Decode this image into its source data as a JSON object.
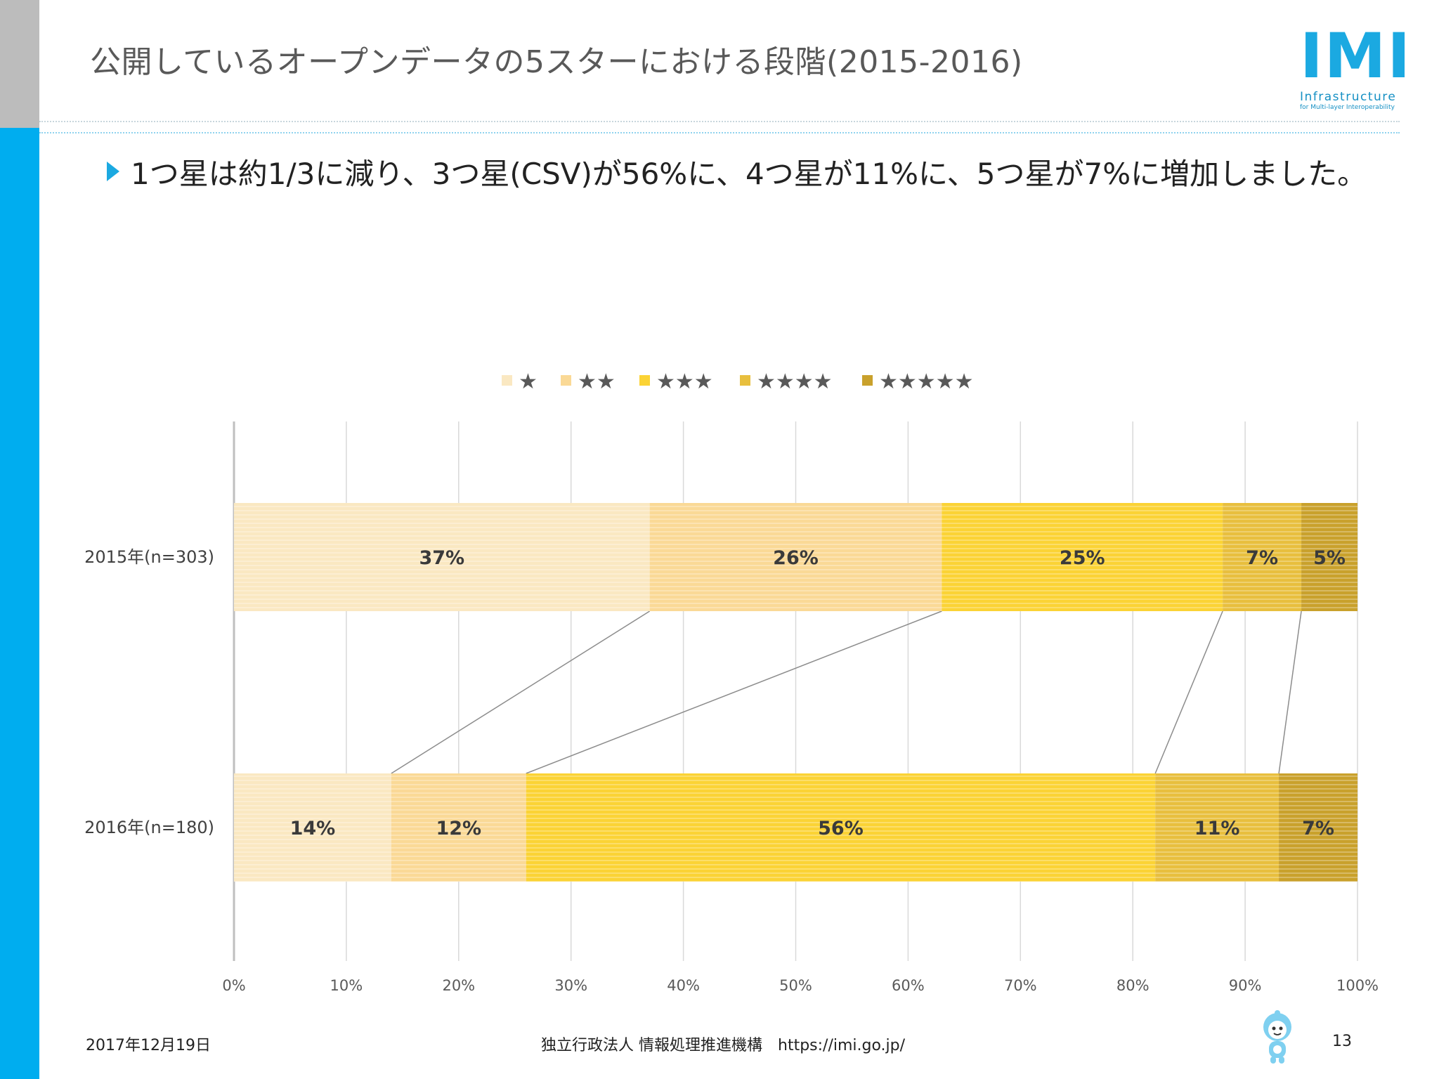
{
  "slide": {
    "title": "公開しているオープンデータの5スターにおける段階(2015-2016)",
    "bullet": "1つ星は約1/3に減り、3つ星(CSV)が56%に、4つ星が11%に、5つ星が7%に増加しました。",
    "logo_mark": "IMI",
    "logo_sub": "Infrastructure",
    "logo_sub2": "for Multi-layer Interoperability",
    "footer_date": "2017年12月19日",
    "footer_org": "独立行政法人 情報処理推進機構　https://imi.go.jp/",
    "page_number": "13"
  },
  "chart_data": {
    "type": "bar",
    "orientation": "horizontal",
    "stacked": true,
    "categories": [
      "2015年(n=303)",
      "2016年(n=180)"
    ],
    "series": [
      {
        "name": "★",
        "values": [
          37,
          14
        ],
        "labels": [
          "37%",
          "14%"
        ],
        "color": "#fae8c2"
      },
      {
        "name": "★★",
        "values": [
          26,
          12
        ],
        "labels": [
          "26%",
          "12%"
        ],
        "color": "#fad996"
      },
      {
        "name": "★★★",
        "values": [
          25,
          56
        ],
        "labels": [
          "25%",
          "56%"
        ],
        "color": "#fbd335"
      },
      {
        "name": "★★★★",
        "values": [
          7,
          11
        ],
        "labels": [
          "7%",
          "11%"
        ],
        "color": "#e8bf3e"
      },
      {
        "name": "★★★★★",
        "values": [
          5,
          7
        ],
        "labels": [
          "5%",
          "7%"
        ],
        "color": "#c9a12c"
      }
    ],
    "xlim": [
      0,
      100
    ],
    "x_ticks": [
      "0%",
      "10%",
      "20%",
      "30%",
      "40%",
      "50%",
      "60%",
      "70%",
      "80%",
      "90%",
      "100%"
    ],
    "grid": true,
    "legend": "top-center",
    "connector_lines": true
  }
}
